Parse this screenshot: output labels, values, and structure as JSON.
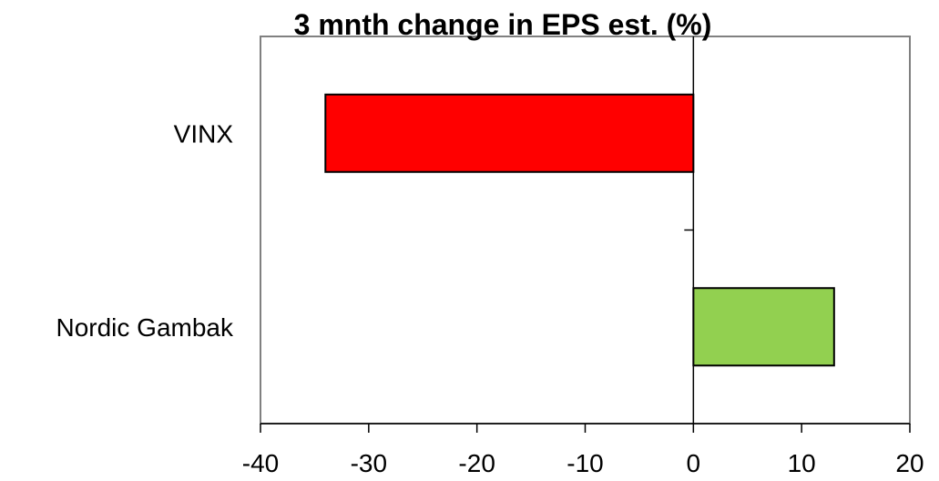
{
  "chart_data": {
    "type": "bar",
    "orientation": "horizontal",
    "title": "3 mnth change in EPS est. (%)",
    "xlabel": "",
    "ylabel": "",
    "categories": [
      "VINX",
      "Nordic Gambak"
    ],
    "values": [
      -34,
      13
    ],
    "bar_colors": [
      "#ff0000",
      "#92d050"
    ],
    "bar_edge_color": "#000000",
    "xlim": [
      -40,
      20
    ],
    "xticks": [
      -40,
      -30,
      -20,
      -10,
      0,
      10,
      20
    ],
    "xtick_labels": [
      "-40",
      "-30",
      "-20",
      "-10",
      "0",
      "10",
      "20"
    ],
    "grid": false,
    "legend": "none",
    "plot_border_color": "#808080"
  }
}
